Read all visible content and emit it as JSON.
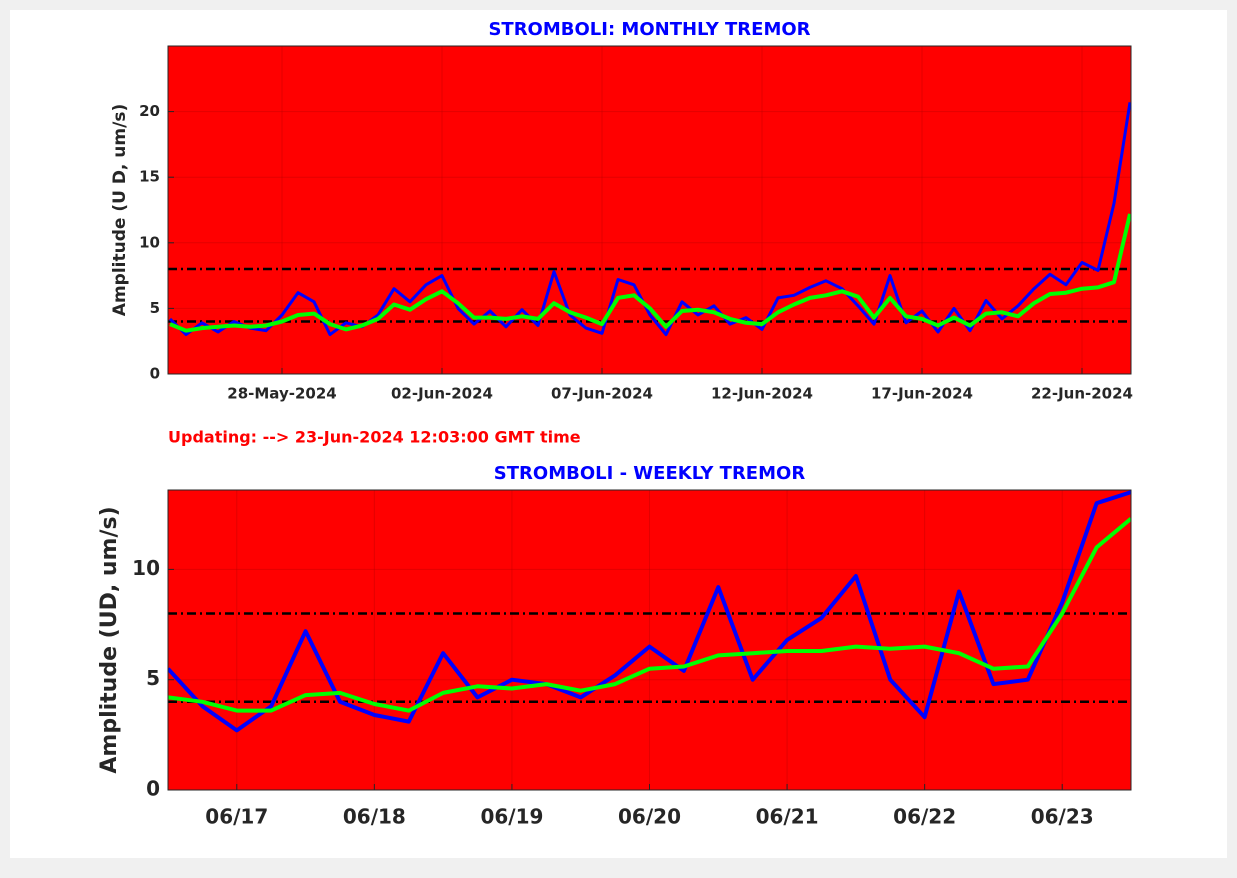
{
  "chart_data": [
    {
      "type": "line",
      "title": "STROMBOLI: MONTHLY TREMOR",
      "ylabel": "Amplitude   (U D,  um/s)",
      "annotation": "Updating:  -->  23-Jun-2024 12:03:00 GMT time",
      "background": "#ff0000",
      "grid": true,
      "reference_lines": [
        4,
        8
      ],
      "xlim": [
        "2024-05-24T10:30",
        "2024-06-23T12:45"
      ],
      "xticks": [
        {
          "value": "2024-05-28",
          "label": "28-May-2024"
        },
        {
          "value": "2024-06-02",
          "label": "02-Jun-2024"
        },
        {
          "value": "2024-06-07",
          "label": "07-Jun-2024"
        },
        {
          "value": "2024-06-12",
          "label": "12-Jun-2024"
        },
        {
          "value": "2024-06-17",
          "label": "17-Jun-2024"
        },
        {
          "value": "2024-06-22",
          "label": "22-Jun-2024"
        }
      ],
      "ylim": [
        0,
        25
      ],
      "yticks": [
        0,
        5,
        10,
        15,
        20
      ],
      "x": [
        "2024-05-24T12:00",
        "2024-05-25T00:00",
        "2024-05-25T12:00",
        "2024-05-26T00:00",
        "2024-05-26T12:00",
        "2024-05-27T00:00",
        "2024-05-27T12:00",
        "2024-05-28T00:00",
        "2024-05-28T12:00",
        "2024-05-29T00:00",
        "2024-05-29T12:00",
        "2024-05-30T00:00",
        "2024-05-30T12:00",
        "2024-05-31T00:00",
        "2024-05-31T12:00",
        "2024-06-01T00:00",
        "2024-06-01T12:00",
        "2024-06-02T00:00",
        "2024-06-02T12:00",
        "2024-06-03T00:00",
        "2024-06-03T12:00",
        "2024-06-04T00:00",
        "2024-06-04T12:00",
        "2024-06-05T00:00",
        "2024-06-05T12:00",
        "2024-06-06T00:00",
        "2024-06-06T12:00",
        "2024-06-07T00:00",
        "2024-06-07T12:00",
        "2024-06-08T00:00",
        "2024-06-08T12:00",
        "2024-06-09T00:00",
        "2024-06-09T12:00",
        "2024-06-10T00:00",
        "2024-06-10T12:00",
        "2024-06-11T00:00",
        "2024-06-11T12:00",
        "2024-06-12T00:00",
        "2024-06-12T12:00",
        "2024-06-13T00:00",
        "2024-06-13T12:00",
        "2024-06-14T00:00",
        "2024-06-14T12:00",
        "2024-06-15T00:00",
        "2024-06-15T12:00",
        "2024-06-16T00:00",
        "2024-06-16T12:00",
        "2024-06-17T00:00",
        "2024-06-17T12:00",
        "2024-06-18T00:00",
        "2024-06-18T12:00",
        "2024-06-19T00:00",
        "2024-06-19T12:00",
        "2024-06-20T00:00",
        "2024-06-20T12:00",
        "2024-06-21T00:00",
        "2024-06-21T12:00",
        "2024-06-22T00:00",
        "2024-06-22T12:00",
        "2024-06-23T00:00",
        "2024-06-23T12:00"
      ],
      "series": [
        {
          "color": "#0000ff",
          "width": 3,
          "values": [
            4.2,
            3.0,
            3.9,
            3.2,
            4.0,
            3.5,
            3.3,
            4.5,
            6.2,
            5.5,
            3.0,
            3.9,
            3.6,
            4.5,
            6.5,
            5.5,
            6.8,
            7.5,
            5.0,
            3.8,
            4.8,
            3.6,
            4.9,
            3.7,
            7.8,
            4.5,
            3.5,
            3.1,
            7.2,
            6.8,
            4.5,
            3.0,
            5.5,
            4.5,
            5.2,
            3.8,
            4.3,
            3.4,
            5.8,
            6.0,
            6.6,
            7.1,
            6.5,
            5.2,
            3.8,
            7.5,
            3.9,
            4.8,
            3.2,
            5.0,
            3.3,
            5.6,
            4.2,
            5.2,
            6.5,
            7.6,
            6.8,
            8.5,
            7.9,
            13.0,
            20.7
          ]
        },
        {
          "color": "#00ff00",
          "width": 4,
          "values": [
            3.8,
            3.3,
            3.5,
            3.6,
            3.7,
            3.6,
            3.7,
            4.0,
            4.5,
            4.6,
            3.8,
            3.4,
            3.7,
            4.2,
            5.3,
            4.9,
            5.7,
            6.3,
            5.4,
            4.3,
            4.3,
            4.2,
            4.4,
            4.2,
            5.4,
            4.7,
            4.3,
            3.8,
            5.8,
            6.0,
            5.0,
            3.6,
            4.8,
            4.9,
            4.7,
            4.2,
            3.9,
            3.8,
            4.7,
            5.3,
            5.8,
            6.0,
            6.3,
            5.9,
            4.3,
            5.8,
            4.4,
            4.2,
            3.7,
            4.3,
            3.7,
            4.6,
            4.7,
            4.4,
            5.4,
            6.1,
            6.2,
            6.5,
            6.6,
            7.0,
            12.2
          ]
        }
      ]
    },
    {
      "type": "line",
      "title": "STROMBOLI - WEEKLY TREMOR",
      "ylabel": "Amplitude (UD, um/s)",
      "background": "#ff0000",
      "grid": true,
      "reference_lines": [
        4,
        8
      ],
      "xlim": [
        "06/16 12:00",
        "06/23 12:00"
      ],
      "xticks": [
        "06/17",
        "06/18",
        "06/19",
        "06/20",
        "06/21",
        "06/22",
        "06/23"
      ],
      "ylim": [
        0,
        13.6
      ],
      "yticks": [
        0,
        5,
        10
      ],
      "x": [
        "06/16 12:00",
        "06/16 18:00",
        "06/17 00:00",
        "06/17 06:00",
        "06/17 12:00",
        "06/17 18:00",
        "06/18 00:00",
        "06/18 06:00",
        "06/18 12:00",
        "06/18 18:00",
        "06/19 00:00",
        "06/19 06:00",
        "06/19 12:00",
        "06/19 18:00",
        "06/20 00:00",
        "06/20 06:00",
        "06/20 12:00",
        "06/20 18:00",
        "06/21 00:00",
        "06/21 06:00",
        "06/21 12:00",
        "06/21 18:00",
        "06/22 00:00",
        "06/22 06:00",
        "06/22 12:00",
        "06/22 18:00",
        "06/23 00:00",
        "06/23 06:00",
        "06/23 12:00"
      ],
      "series": [
        {
          "color": "#0000ff",
          "width": 4,
          "values": [
            5.5,
            3.8,
            2.7,
            3.8,
            7.2,
            4.0,
            3.4,
            3.1,
            6.2,
            4.2,
            5.0,
            4.8,
            4.2,
            5.2,
            6.5,
            5.4,
            9.2,
            5.0,
            6.8,
            7.8,
            9.7,
            5.0,
            3.3,
            9.0,
            4.8,
            5.0,
            8.5,
            13.0,
            13.5
          ]
        },
        {
          "color": "#00ff00",
          "width": 4,
          "values": [
            4.2,
            4.0,
            3.6,
            3.6,
            4.3,
            4.4,
            3.9,
            3.6,
            4.4,
            4.7,
            4.6,
            4.8,
            4.5,
            4.8,
            5.5,
            5.6,
            6.1,
            6.2,
            6.3,
            6.3,
            6.5,
            6.4,
            6.5,
            6.2,
            5.5,
            5.6,
            8.0,
            11.0,
            12.3
          ]
        }
      ]
    }
  ]
}
